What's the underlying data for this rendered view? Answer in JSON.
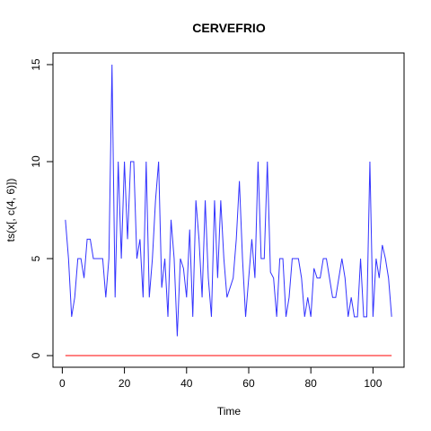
{
  "chart_data": {
    "type": "line",
    "title": "CERVEFRIO",
    "xlabel": "Time",
    "ylabel": "ts(x[, c(4, 6)])",
    "xlim": [
      -3,
      110
    ],
    "ylim": [
      -0.6,
      15.6
    ],
    "x_ticks": [
      0,
      20,
      40,
      60,
      80,
      100
    ],
    "y_ticks": [
      0,
      5,
      10,
      15
    ],
    "x_start": 1,
    "grid": false,
    "legend": "none",
    "series": [
      {
        "color": "#3333ff",
        "values": [
          7,
          5,
          2,
          3,
          5,
          5,
          4,
          6,
          6,
          5,
          5,
          5,
          5,
          3,
          5,
          15,
          3,
          10,
          5,
          10,
          6,
          10,
          10,
          5,
          6,
          3,
          10,
          3,
          5,
          8,
          10,
          3.5,
          5,
          2,
          7,
          5,
          1,
          5,
          4.5,
          3,
          6.5,
          2,
          8,
          6,
          3,
          8,
          4,
          2,
          8,
          4,
          8,
          5,
          3,
          3.5,
          4,
          6,
          9,
          5,
          2,
          4,
          6,
          4,
          10,
          5,
          5,
          10,
          4.3,
          4,
          2,
          5,
          5,
          2,
          3,
          5,
          5,
          5,
          4,
          2,
          3,
          2,
          4.5,
          4,
          4,
          5,
          5,
          4,
          3,
          3,
          4,
          5,
          4,
          2,
          3,
          2,
          2,
          5,
          2,
          2,
          10,
          2,
          5,
          4,
          5.7,
          5,
          4,
          2
        ]
      },
      {
        "color": "#ff0000",
        "values": [
          0,
          0,
          0,
          0,
          0,
          0,
          0,
          0,
          0,
          0,
          0,
          0,
          0,
          0,
          0,
          0,
          0,
          0,
          0,
          0,
          0,
          0,
          0,
          0,
          0,
          0,
          0,
          0,
          0,
          0,
          0,
          0,
          0,
          0,
          0,
          0,
          0,
          0,
          0,
          0,
          0,
          0,
          0,
          0,
          0,
          0,
          0,
          0,
          0,
          0,
          0,
          0,
          0,
          0,
          0,
          0,
          0,
          0,
          0,
          0,
          0,
          0,
          0,
          0,
          0,
          0,
          0,
          0,
          0,
          0,
          0,
          0,
          0,
          0,
          0,
          0,
          0,
          0,
          0,
          0,
          0,
          0,
          0,
          0,
          0,
          0,
          0,
          0,
          0,
          0,
          0,
          0,
          0,
          0,
          0,
          0,
          0,
          0,
          0,
          0,
          0,
          0,
          0,
          0,
          0,
          0
        ]
      }
    ]
  }
}
